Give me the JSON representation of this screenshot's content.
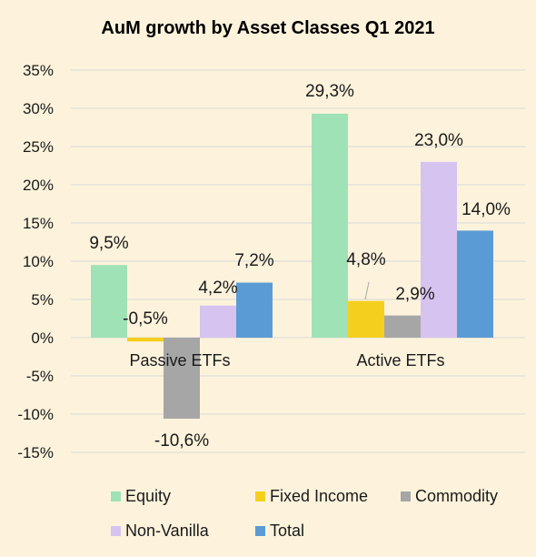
{
  "chart_data": {
    "type": "bar",
    "title": "AuM growth by Asset Classes Q1 2021",
    "categories": [
      "Passive ETFs",
      "Active ETFs"
    ],
    "series": [
      {
        "name": "Equity",
        "values": [
          9.5,
          29.3
        ],
        "labels": [
          "9,5%",
          "29,3%"
        ],
        "color": "#9fe2b5"
      },
      {
        "name": "Fixed Income",
        "values": [
          -0.5,
          4.8
        ],
        "labels": [
          "-0,5%",
          "4,8%"
        ],
        "color": "#f5cf1d"
      },
      {
        "name": "Commodity",
        "values": [
          -10.6,
          2.9
        ],
        "labels": [
          "-10,6%",
          "2,9%"
        ],
        "color": "#a6a6a6"
      },
      {
        "name": "Non-Vanilla",
        "values": [
          4.2,
          23.0
        ],
        "labels": [
          "4,2%",
          "23,0%"
        ],
        "color": "#d6c3f0"
      },
      {
        "name": "Total",
        "values": [
          7.2,
          14.0
        ],
        "labels": [
          "7,2%",
          "14,0%"
        ],
        "color": "#5b9bd5"
      }
    ],
    "yticks": [
      35,
      30,
      25,
      20,
      15,
      10,
      5,
      0,
      -5,
      -10,
      -15
    ],
    "ytick_labels": [
      "35%",
      "30%",
      "25%",
      "20%",
      "15%",
      "10%",
      "5%",
      "0%",
      "-5%",
      "-10%",
      "-15%"
    ],
    "ylim": [
      -15,
      35
    ],
    "grid": true,
    "legend_position": "bottom"
  }
}
